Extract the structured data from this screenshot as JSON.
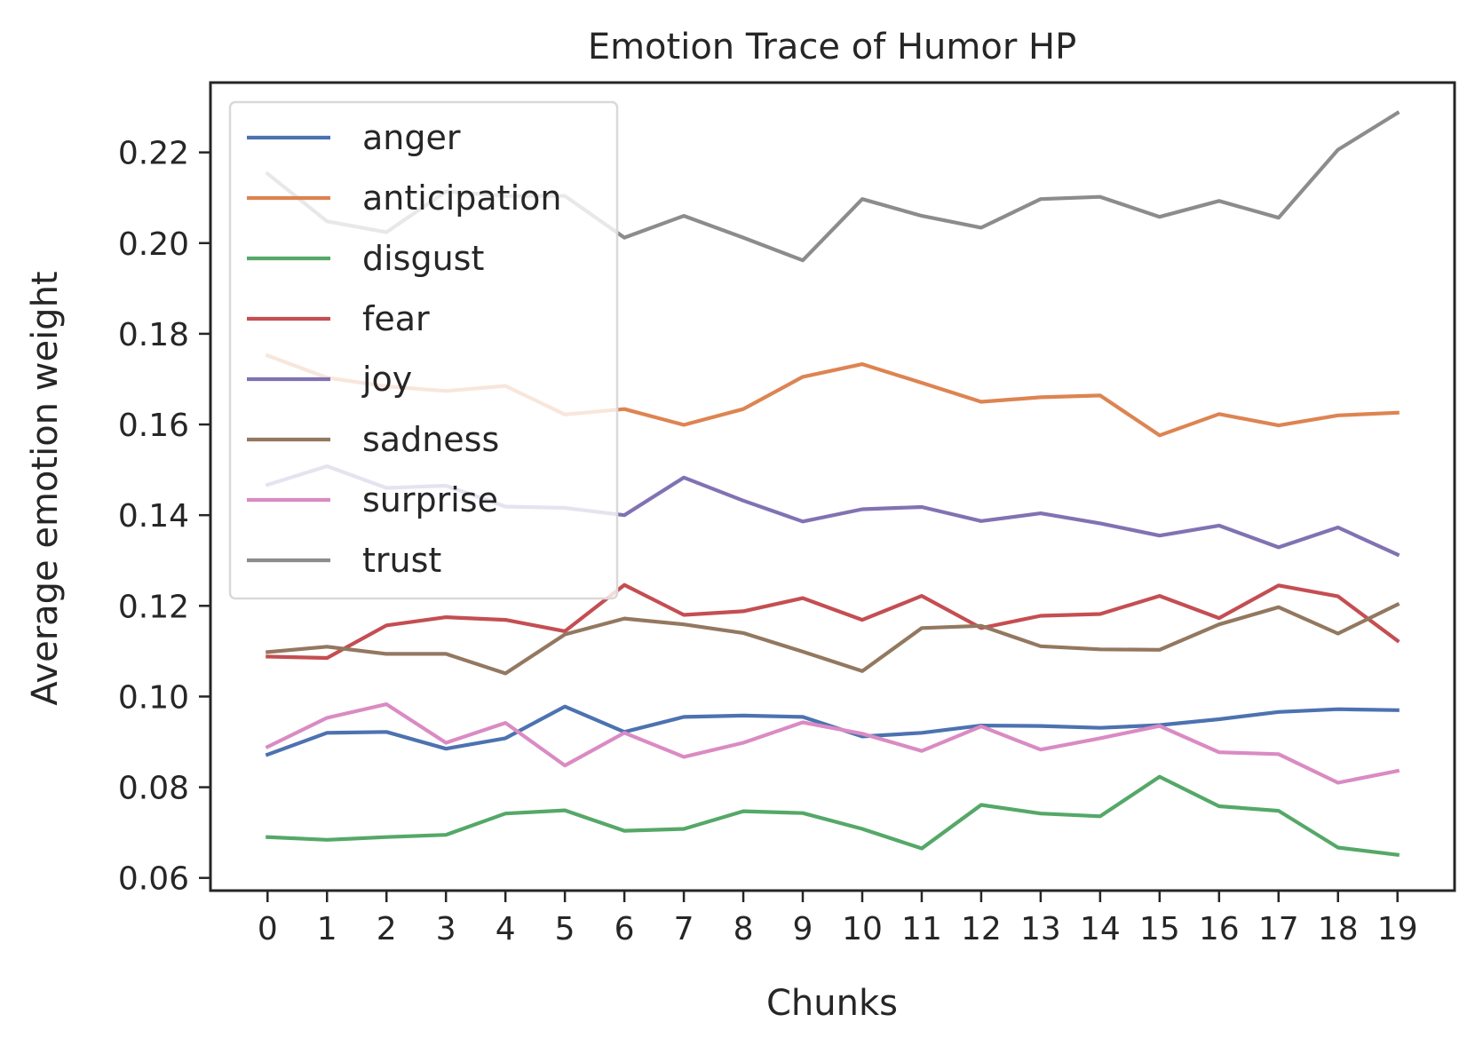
{
  "chart_data": {
    "type": "line",
    "title": "Emotion Trace of Humor HP",
    "xlabel": "Chunks",
    "ylabel": "Average emotion weight",
    "x": [
      0,
      1,
      2,
      3,
      4,
      5,
      6,
      7,
      8,
      9,
      10,
      11,
      12,
      13,
      14,
      15,
      16,
      17,
      18,
      19
    ],
    "xlim": [
      -0.96,
      19.96
    ],
    "ylim": [
      0.0572,
      0.2354
    ],
    "yticks": [
      "0.06",
      "0.08",
      "0.10",
      "0.12",
      "0.14",
      "0.16",
      "0.18",
      "0.20",
      "0.22"
    ],
    "grid": false,
    "legend_position": "upper-left",
    "series": [
      {
        "name": "anger",
        "color": "#4c72b0",
        "values": [
          0.0872,
          0.092,
          0.0922,
          0.0885,
          0.0908,
          0.0978,
          0.0922,
          0.0955,
          0.0958,
          0.0955,
          0.0912,
          0.092,
          0.0936,
          0.0935,
          0.0931,
          0.0937,
          0.095,
          0.0966,
          0.0972,
          0.097
        ]
      },
      {
        "name": "anticipation",
        "color": "#dd8452",
        "values": [
          0.1752,
          0.1703,
          0.1684,
          0.1674,
          0.1685,
          0.1622,
          0.1634,
          0.1599,
          0.1634,
          0.1705,
          0.1733,
          0.1692,
          0.165,
          0.166,
          0.1664,
          0.1576,
          0.1623,
          0.1598,
          0.162,
          0.1626
        ]
      },
      {
        "name": "disgust",
        "color": "#55a868",
        "values": [
          0.069,
          0.0684,
          0.069,
          0.0695,
          0.0742,
          0.0749,
          0.0704,
          0.0708,
          0.0747,
          0.0743,
          0.0708,
          0.0665,
          0.0761,
          0.0742,
          0.0736,
          0.0823,
          0.0758,
          0.0748,
          0.0667,
          0.0651
        ]
      },
      {
        "name": "fear",
        "color": "#c44e52",
        "values": [
          0.1088,
          0.1085,
          0.1157,
          0.1175,
          0.1169,
          0.1144,
          0.1246,
          0.118,
          0.1188,
          0.1217,
          0.1169,
          0.1222,
          0.1151,
          0.1178,
          0.1182,
          0.1222,
          0.1173,
          0.1245,
          0.1221,
          0.1123
        ]
      },
      {
        "name": "joy",
        "color": "#8172b3",
        "values": [
          0.1467,
          0.1508,
          0.146,
          0.1465,
          0.1419,
          0.1416,
          0.14,
          0.1483,
          0.1432,
          0.1386,
          0.1413,
          0.1418,
          0.1387,
          0.1404,
          0.1382,
          0.1355,
          0.1377,
          0.1329,
          0.1373,
          0.1313
        ]
      },
      {
        "name": "sadness",
        "color": "#937860",
        "values": [
          0.1098,
          0.111,
          0.1094,
          0.1094,
          0.1051,
          0.1137,
          0.1172,
          0.1159,
          0.114,
          0.1099,
          0.1056,
          0.1151,
          0.1156,
          0.1111,
          0.1104,
          0.1103,
          0.1159,
          0.1197,
          0.1139,
          0.1203
        ]
      },
      {
        "name": "surprise",
        "color": "#da8bc3",
        "values": [
          0.0889,
          0.0953,
          0.0983,
          0.0898,
          0.0942,
          0.0848,
          0.092,
          0.0867,
          0.0898,
          0.0943,
          0.0918,
          0.088,
          0.0934,
          0.0883,
          0.0908,
          0.0935,
          0.0877,
          0.0873,
          0.081,
          0.0836
        ]
      },
      {
        "name": "trust",
        "color": "#8c8c8c",
        "values": [
          0.2153,
          0.2048,
          0.2024,
          0.2114,
          0.2104,
          0.2104,
          0.2012,
          0.206,
          0.2012,
          0.1962,
          0.2097,
          0.206,
          0.2034,
          0.2097,
          0.2102,
          0.2058,
          0.2093,
          0.2056,
          0.2206,
          0.2287
        ]
      }
    ]
  }
}
